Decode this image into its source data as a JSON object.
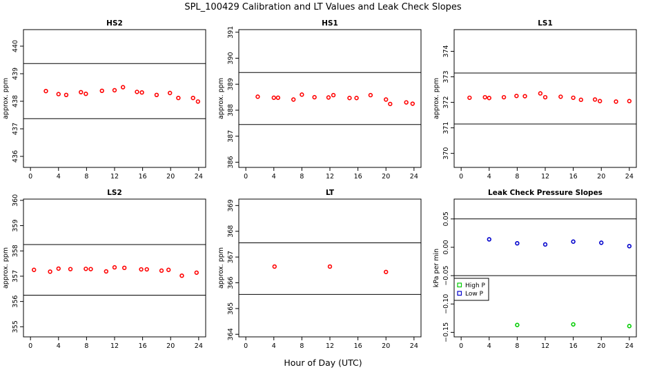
{
  "figure": {
    "title": "SPL_100429  Calibration and LT Values and Leak Check Slopes",
    "xlabel": "Hour of Day (UTC)"
  },
  "chart_data": [
    {
      "type": "scatter",
      "title": "HS2",
      "ylabel": "approx. ppm",
      "xlim": [
        -1,
        25
      ],
      "ylim": [
        435.6,
        440.6
      ],
      "xticks": [
        0,
        4,
        8,
        12,
        16,
        20,
        24
      ],
      "yticks": [
        436,
        437,
        438,
        439,
        440
      ],
      "hlines": [
        439.37,
        437.37
      ],
      "series": [
        {
          "name": "HS2",
          "color": "#ff0000",
          "x": [
            2.2,
            4.0,
            5.1,
            7.2,
            7.9,
            10.2,
            12.0,
            13.2,
            15.2,
            15.9,
            18.0,
            19.9,
            21.1,
            23.2,
            23.9
          ],
          "y": [
            438.37,
            438.26,
            438.23,
            438.33,
            438.27,
            438.38,
            438.4,
            438.51,
            438.34,
            438.32,
            438.23,
            438.3,
            438.12,
            438.12,
            437.99
          ]
        }
      ]
    },
    {
      "type": "scatter",
      "title": "HS1",
      "ylabel": "approx. ppm",
      "xlim": [
        -1,
        25
      ],
      "ylim": [
        385.8,
        391.1
      ],
      "xticks": [
        0,
        4,
        8,
        12,
        16,
        20,
        24
      ],
      "yticks": [
        386,
        387,
        388,
        389,
        390,
        391
      ],
      "hlines": [
        389.45,
        387.45
      ],
      "series": [
        {
          "name": "HS1",
          "color": "#ff0000",
          "x": [
            1.7,
            4.0,
            4.6,
            6.8,
            8.0,
            9.8,
            11.8,
            12.5,
            14.8,
            15.8,
            17.8,
            20.0,
            20.6,
            22.9,
            23.8
          ],
          "y": [
            388.52,
            388.48,
            388.48,
            388.41,
            388.6,
            388.5,
            388.49,
            388.58,
            388.47,
            388.47,
            388.58,
            388.41,
            388.24,
            388.3,
            388.25
          ]
        }
      ]
    },
    {
      "type": "scatter",
      "title": "LS1",
      "ylabel": "approx. ppm",
      "xlim": [
        -1,
        25
      ],
      "ylim": [
        369.45,
        374.85
      ],
      "xticks": [
        0,
        4,
        8,
        12,
        16,
        20,
        24
      ],
      "yticks": [
        370,
        371,
        372,
        373,
        374
      ],
      "hlines": [
        373.15,
        371.15
      ],
      "series": [
        {
          "name": "LS1",
          "color": "#ff0000",
          "x": [
            1.2,
            3.4,
            4.0,
            6.1,
            7.9,
            9.1,
            11.3,
            12.0,
            14.2,
            16.0,
            17.1,
            19.1,
            19.8,
            22.1,
            24.0
          ],
          "y": [
            372.18,
            372.2,
            372.17,
            372.2,
            372.25,
            372.24,
            372.35,
            372.2,
            372.22,
            372.18,
            372.1,
            372.11,
            372.05,
            372.03,
            372.05
          ]
        }
      ]
    },
    {
      "type": "scatter",
      "title": "LS2",
      "ylabel": "approx. ppm",
      "xlim": [
        -1,
        25
      ],
      "ylim": [
        354.6,
        360.05
      ],
      "xticks": [
        0,
        4,
        8,
        12,
        16,
        20,
        24
      ],
      "yticks": [
        355,
        356,
        357,
        358,
        359,
        360
      ],
      "hlines": [
        358.25,
        356.25
      ],
      "series": [
        {
          "name": "LS2",
          "color": "#ff0000",
          "x": [
            0.5,
            2.8,
            4.0,
            5.7,
            7.9,
            8.6,
            10.8,
            12.0,
            13.4,
            15.8,
            16.6,
            18.7,
            19.7,
            21.6,
            23.7
          ],
          "y": [
            357.25,
            357.18,
            357.3,
            357.28,
            357.29,
            357.28,
            357.19,
            357.35,
            357.33,
            357.27,
            357.27,
            357.22,
            357.25,
            357.02,
            357.14
          ]
        }
      ]
    },
    {
      "type": "scatter",
      "title": "LT",
      "ylabel": "approx. ppm",
      "xlim": [
        -1,
        25
      ],
      "ylim": [
        363.9,
        369.25
      ],
      "xticks": [
        0,
        4,
        8,
        12,
        16,
        20,
        24
      ],
      "yticks": [
        364,
        365,
        366,
        367,
        368,
        369
      ],
      "hlines": [
        367.55,
        365.55
      ],
      "series": [
        {
          "name": "LT",
          "color": "#ff0000",
          "x": [
            4.1,
            12.0,
            20.0
          ],
          "y": [
            366.63,
            366.63,
            366.42
          ]
        }
      ]
    },
    {
      "type": "scatter",
      "title": "Leak Check Pressure Slopes",
      "ylabel": "kPa per min",
      "xlim": [
        -1,
        25
      ],
      "ylim": [
        -0.158,
        0.085
      ],
      "xticks": [
        0,
        4,
        8,
        12,
        16,
        20,
        24
      ],
      "yticks": [
        -0.15,
        -0.1,
        -0.05,
        0.0,
        0.05
      ],
      "ytick_labels": [
        "−0.15",
        "−0.10",
        "−0.05",
        "0.00",
        "0.05"
      ],
      "hlines": [
        0.05,
        -0.05
      ],
      "legend": {
        "position": "left",
        "entries": [
          {
            "label": "High P",
            "color": "#00cc00"
          },
          {
            "label": "Low P",
            "color": "#0000cc"
          }
        ]
      },
      "series": [
        {
          "name": "High P",
          "color": "#00cc00",
          "x": [
            8.0,
            16.0,
            24.0
          ],
          "y": [
            -0.137,
            -0.136,
            -0.139
          ]
        },
        {
          "name": "Low P",
          "color": "#0000cc",
          "x": [
            4.0,
            8.0,
            12.0,
            16.0,
            20.0,
            24.0
          ],
          "y": [
            0.014,
            0.007,
            0.005,
            0.01,
            0.008,
            0.002
          ]
        }
      ]
    }
  ]
}
